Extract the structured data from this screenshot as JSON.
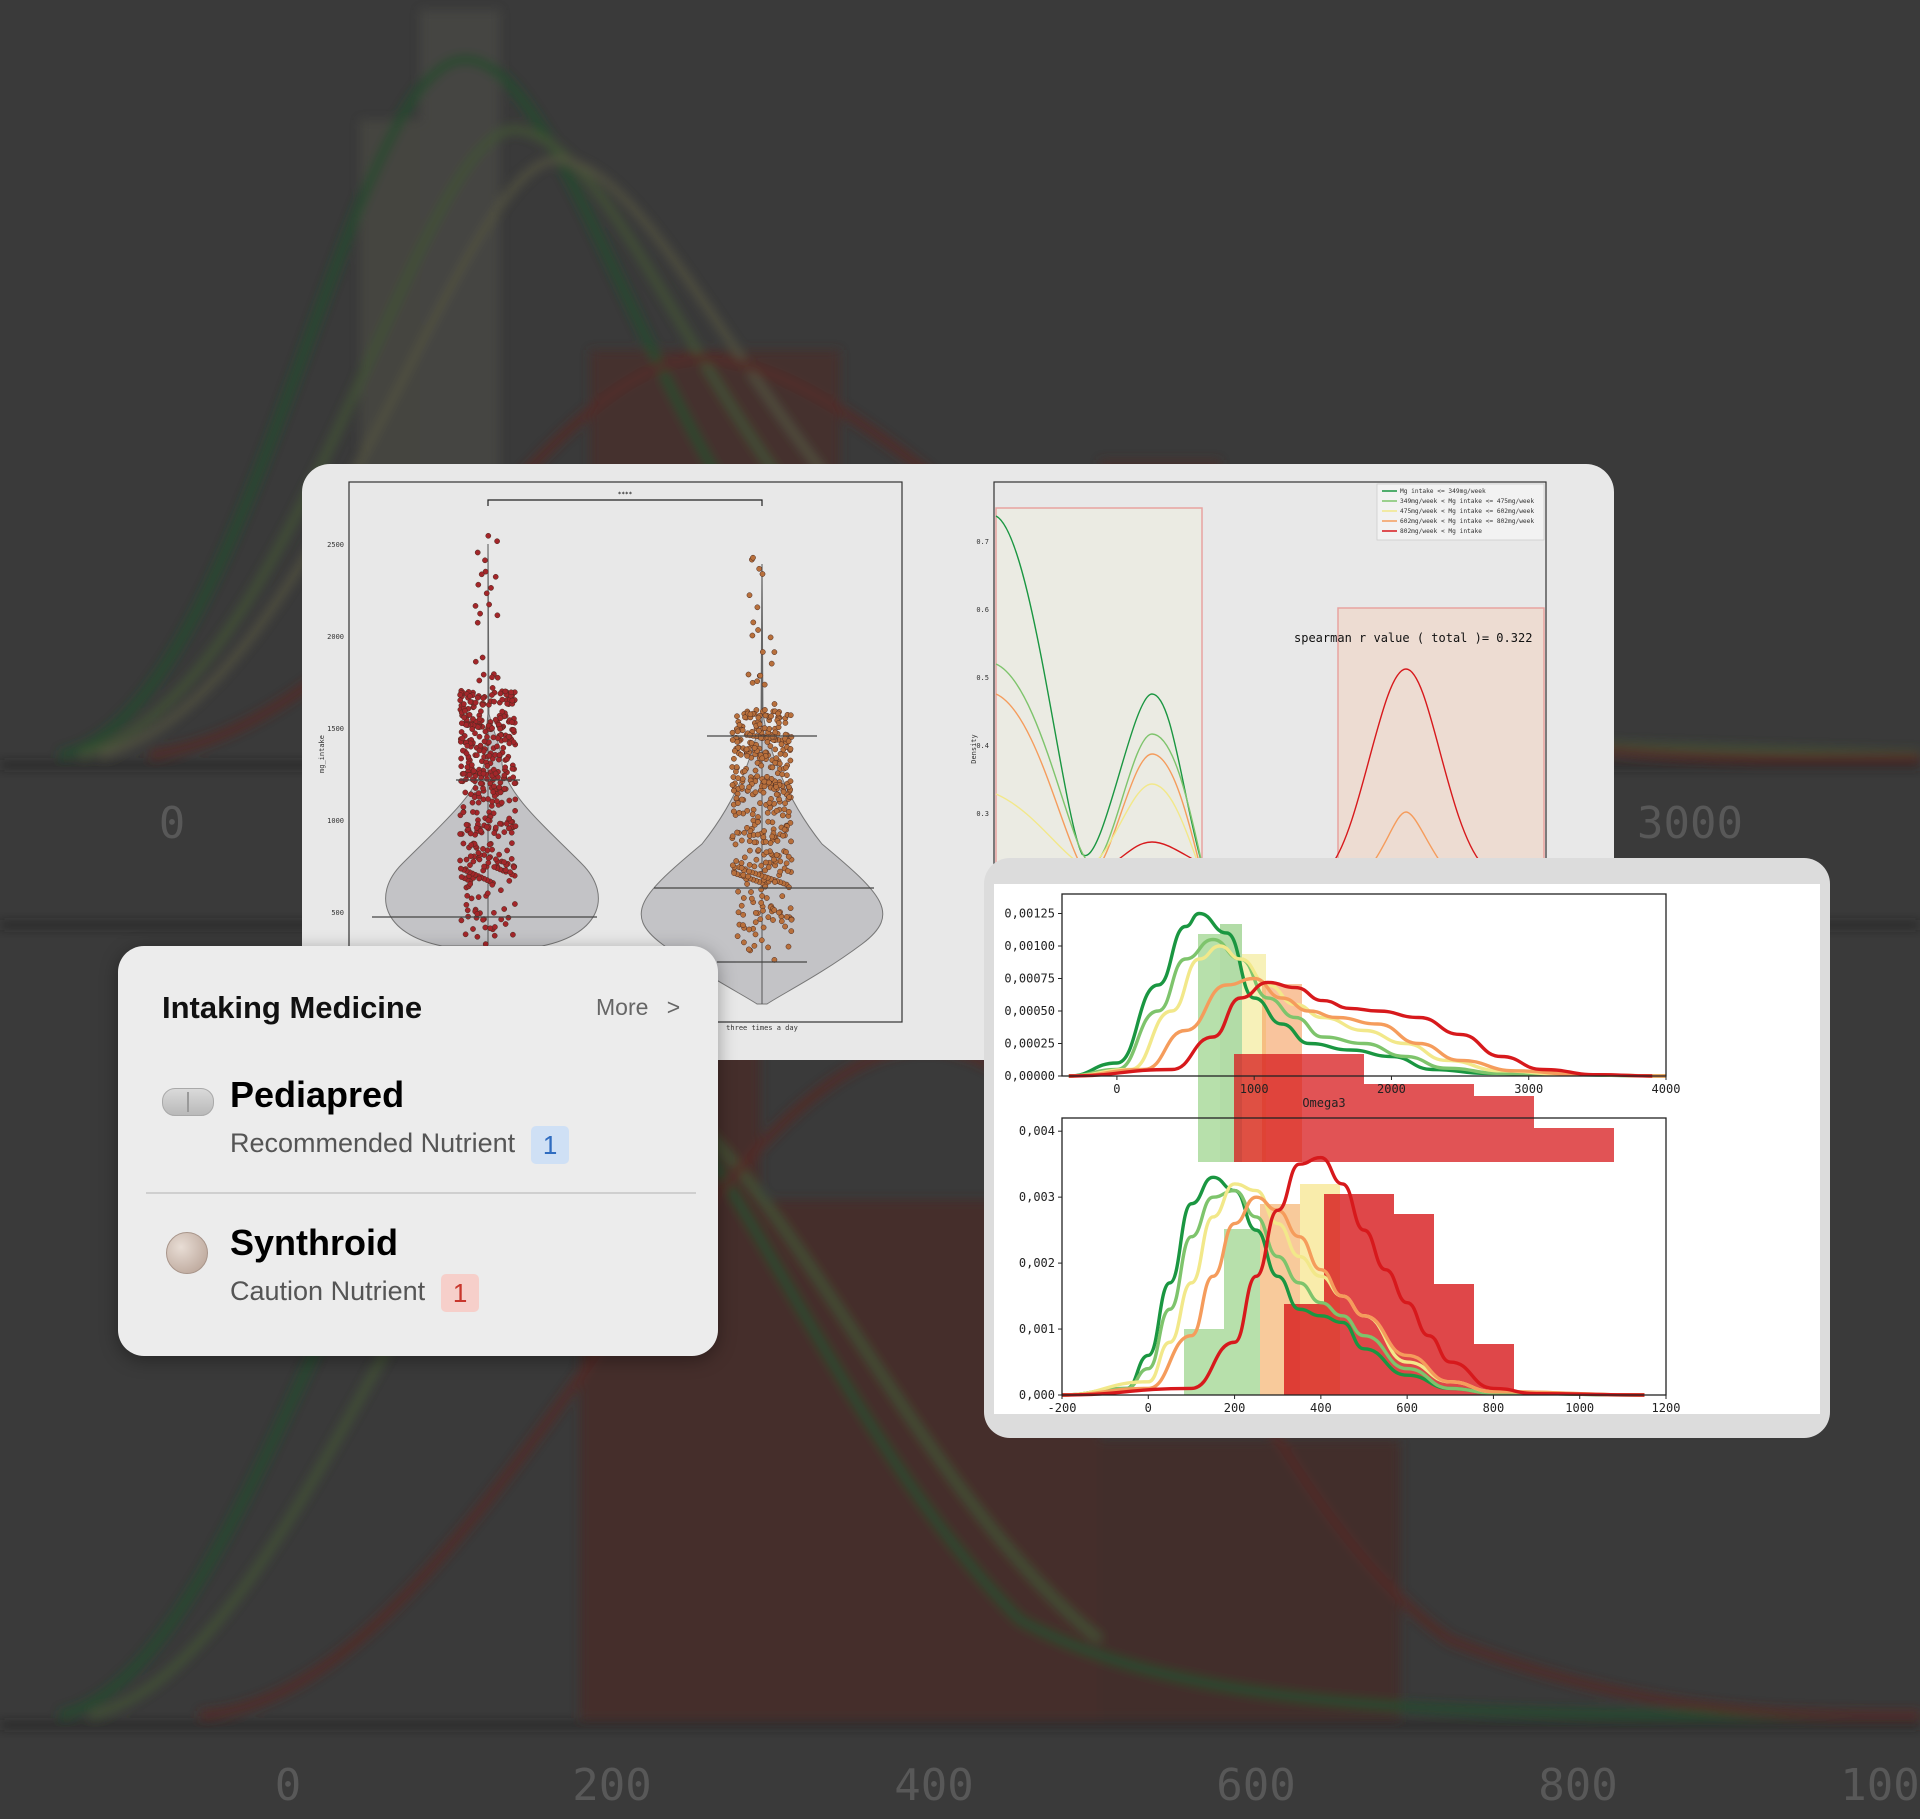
{
  "background": {
    "top_axis_ticks": [
      "0",
      "3000"
    ],
    "bottom_axis_ticks": [
      "0",
      "200",
      "400",
      "600",
      "800",
      "100"
    ]
  },
  "violin_chart": {
    "type": "violin",
    "significance_label": "****",
    "ylabel": "mg_intake",
    "ytick_labels": [
      "2500",
      "2000",
      "1500",
      "1000",
      "500"
    ],
    "category_label": "three times a day",
    "colors": {
      "group1_points": "#a3262a",
      "group2_points": "#b8703c",
      "violin_fill": "#c3c3c6"
    }
  },
  "density_chart": {
    "type": "line",
    "ylabel": "Density",
    "ytick_labels": [
      "0.7",
      "0.6",
      "0.5",
      "0.4",
      "0.3"
    ],
    "annotation": "spearman r value ( total )= 0.322",
    "legend": [
      {
        "label": "Mg intake <= 349mg/week",
        "color": "#1a9641"
      },
      {
        "label": "349mg/week < Mg intake <= 475mg/week",
        "color": "#7ec46c"
      },
      {
        "label": "475mg/week < Mg intake <= 602mg/week",
        "color": "#f2e88a"
      },
      {
        "label": "602mg/week < Mg intake <= 802mg/week",
        "color": "#f59c5c"
      },
      {
        "label": "802mg/week < Mg intake",
        "color": "#d7191c"
      }
    ]
  },
  "chart_data": [
    {
      "type": "area",
      "title": "",
      "xlabel": "Omega3",
      "xlim": [
        -400,
        4000
      ],
      "ylim": [
        0,
        0.0014
      ],
      "xtick_labels": [
        "0",
        "1000",
        "2000",
        "3000",
        "4000"
      ],
      "ytick_labels": [
        "0,00125",
        "0,00100",
        "0,00075",
        "0,00050",
        "0,00025",
        "0,00000"
      ],
      "xticks": [
        0,
        1000,
        2000,
        3000,
        4000
      ],
      "yticks": [
        0.00125,
        0.001,
        0.00075,
        0.0005,
        0.00025,
        0
      ],
      "series": [
        {
          "color": "#1a9641",
          "x": [
            -350,
            0,
            300,
            500,
            600,
            800,
            1000,
            1200,
            1400,
            1700,
            2000,
            2300,
            2700,
            3200,
            4000
          ],
          "y": [
            0,
            0.0001,
            0.0007,
            0.00115,
            0.00125,
            0.0011,
            0.0006,
            0.0004,
            0.00025,
            0.0002,
            0.00015,
            5e-05,
            2e-05,
            1e-05,
            0
          ]
        },
        {
          "color": "#7ec46c",
          "x": [
            -350,
            0,
            300,
            500,
            700,
            900,
            1100,
            1300,
            1500,
            1800,
            2100,
            2400,
            2800,
            3300,
            4000
          ],
          "y": [
            0,
            5e-05,
            0.0005,
            0.0009,
            0.00105,
            0.0009,
            0.0006,
            0.00045,
            0.0003,
            0.00025,
            0.00015,
            6e-05,
            2e-05,
            1e-05,
            0
          ]
        },
        {
          "color": "#f2e88a",
          "x": [
            -350,
            100,
            400,
            600,
            750,
            900,
            1100,
            1300,
            1500,
            1800,
            2100,
            2400,
            2800,
            3300,
            4000
          ],
          "y": [
            0,
            5e-05,
            0.0005,
            0.0009,
            0.001,
            0.0009,
            0.0007,
            0.00055,
            0.00045,
            0.00035,
            0.00025,
            0.00012,
            4e-05,
            1e-05,
            0
          ]
        },
        {
          "color": "#f59c5c",
          "x": [
            -350,
            200,
            500,
            800,
            1000,
            1200,
            1400,
            1600,
            1900,
            2200,
            2500,
            2900,
            3400,
            4000
          ],
          "y": [
            0,
            5e-05,
            0.00035,
            0.0007,
            0.00075,
            0.0006,
            0.0005,
            0.00045,
            0.0004,
            0.00025,
            0.00012,
            4e-05,
            1e-05,
            0
          ]
        },
        {
          "color": "#d7191c",
          "x": [
            -350,
            400,
            700,
            900,
            1100,
            1300,
            1500,
            1700,
            1900,
            2200,
            2500,
            2800,
            3100,
            3500,
            3900
          ],
          "y": [
            0,
            5e-05,
            0.0003,
            0.0006,
            0.00072,
            0.00068,
            0.00058,
            0.00052,
            0.0005,
            0.00045,
            0.00032,
            0.00015,
            5e-05,
            1e-05,
            0
          ]
        }
      ]
    },
    {
      "type": "area",
      "title": "",
      "xlabel": "",
      "xlim": [
        -200,
        1200
      ],
      "ylim": [
        0,
        0.0042
      ],
      "xtick_labels": [
        "-200",
        "0",
        "200",
        "400",
        "600",
        "800",
        "1000",
        "1200"
      ],
      "ytick_labels": [
        "0,004",
        "0,003",
        "0,002",
        "0,001",
        "0,000"
      ],
      "xticks": [
        -200,
        0,
        200,
        400,
        600,
        800,
        1000,
        1200
      ],
      "yticks": [
        0.004,
        0.003,
        0.002,
        0.001,
        0
      ],
      "series": [
        {
          "color": "#1a9641",
          "x": [
            -200,
            -50,
            0,
            50,
            100,
            150,
            200,
            250,
            300,
            350,
            400,
            450,
            500,
            600,
            700,
            800,
            1150
          ],
          "y": [
            0,
            0.0001,
            0.0006,
            0.0017,
            0.0029,
            0.0033,
            0.0031,
            0.0025,
            0.0018,
            0.0013,
            0.0012,
            0.0011,
            0.0007,
            0.0003,
            0.0001,
            3e-05,
            0
          ]
        },
        {
          "color": "#7ec46c",
          "x": [
            -200,
            -50,
            0,
            50,
            100,
            150,
            200,
            250,
            300,
            350,
            400,
            450,
            500,
            600,
            700,
            800,
            1150
          ],
          "y": [
            0,
            0.0001,
            0.0004,
            0.0013,
            0.0024,
            0.003,
            0.0031,
            0.0027,
            0.0021,
            0.0017,
            0.0014,
            0.0012,
            0.0009,
            0.0004,
            0.0001,
            3e-05,
            0
          ]
        },
        {
          "color": "#f2e88a",
          "x": [
            -200,
            0,
            50,
            100,
            150,
            200,
            250,
            300,
            350,
            400,
            450,
            500,
            600,
            700,
            800,
            1150
          ],
          "y": [
            0,
            0.0002,
            0.0008,
            0.0017,
            0.0027,
            0.0032,
            0.0031,
            0.0026,
            0.0021,
            0.0018,
            0.0015,
            0.0012,
            0.0005,
            0.0002,
            5e-05,
            0
          ]
        },
        {
          "color": "#f59c5c",
          "x": [
            -200,
            0,
            100,
            150,
            200,
            250,
            300,
            350,
            400,
            450,
            500,
            600,
            700,
            800,
            1150
          ],
          "y": [
            0,
            0.0001,
            0.0009,
            0.0018,
            0.0026,
            0.003,
            0.0028,
            0.0024,
            0.0019,
            0.0015,
            0.0012,
            0.0006,
            0.0002,
            5e-05,
            0
          ]
        },
        {
          "color": "#d7191c",
          "x": [
            -200,
            100,
            200,
            250,
            300,
            350,
            400,
            450,
            500,
            550,
            600,
            650,
            700,
            800,
            900,
            1150
          ],
          "y": [
            0,
            0.0001,
            0.0008,
            0.0018,
            0.0028,
            0.0035,
            0.0036,
            0.0032,
            0.0025,
            0.0019,
            0.0014,
            0.0009,
            0.0005,
            0.0001,
            2e-05,
            0
          ]
        }
      ]
    }
  ],
  "medicine_card": {
    "title": "Intaking Medicine",
    "more_label": "More",
    "more_chevron": ">",
    "items": [
      {
        "name": "Pediapred",
        "category": "Recommended Nutrient",
        "count": "1",
        "icon": "capsule-pill-icon",
        "badge_color": "#2f6cc0"
      },
      {
        "name": "Synthroid",
        "category": "Caution Nutrient",
        "count": "1",
        "icon": "round-pill-icon",
        "badge_color": "#c8362c"
      }
    ]
  }
}
